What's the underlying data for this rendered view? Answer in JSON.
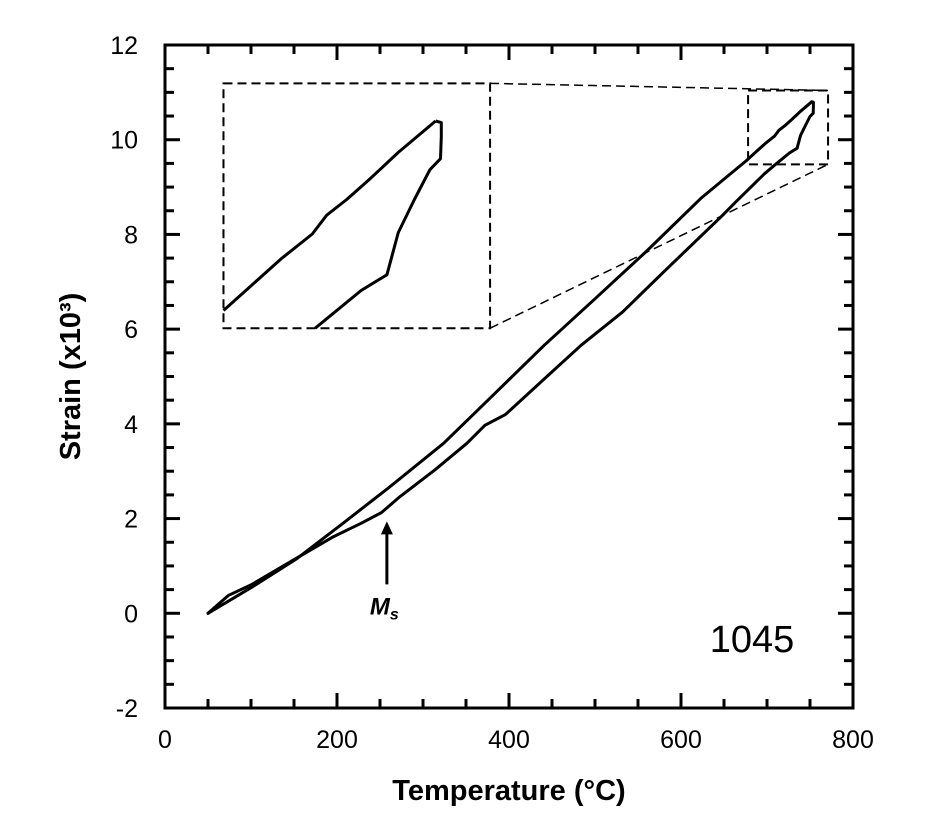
{
  "chart_data": {
    "type": "line",
    "title": "",
    "xlabel": "Temperature (°C)",
    "ylabel": "Strain (x10³)",
    "xlim": [
      0,
      800
    ],
    "ylim": [
      -2,
      12
    ],
    "xticks": [
      0,
      200,
      400,
      600,
      800
    ],
    "yticks": [
      -2,
      0,
      2,
      4,
      6,
      8,
      10,
      12
    ],
    "x_minor_step": 50,
    "y_minor_step": 0.5,
    "grid": false,
    "line_color": "#000000",
    "series": [
      {
        "x": [
          50,
          100,
          153,
          207,
          260,
          324,
          380,
          441,
          500,
          559,
          623,
          676,
          687,
          698,
          709,
          714,
          721,
          729,
          739,
          752
        ],
        "y": [
          0.0,
          0.54,
          1.15,
          1.9,
          2.65,
          3.59,
          4.58,
          5.66,
          6.64,
          7.63,
          8.76,
          9.56,
          9.74,
          9.92,
          10.08,
          10.2,
          10.3,
          10.43,
          10.6,
          10.8
        ]
      },
      {
        "x": [
          752,
          754,
          754,
          753.7,
          750,
          744.6,
          739,
          735,
          726,
          710,
          697,
          665,
          647,
          628,
          580,
          532,
          484,
          441,
          396,
          372,
          351,
          314,
          273,
          252,
          228,
          196,
          149,
          100,
          74,
          50
        ],
        "y": [
          10.8,
          10.79,
          10.7,
          10.56,
          10.49,
          10.3,
          10.09,
          9.82,
          9.72,
          9.48,
          9.28,
          8.71,
          8.38,
          8.05,
          7.21,
          6.36,
          5.66,
          4.95,
          4.2,
          3.97,
          3.59,
          3.03,
          2.46,
          2.13,
          1.9,
          1.62,
          1.12,
          0.6,
          0.38,
          0.0
        ]
      }
    ],
    "zoom_region": {
      "x": [
        678,
        771
      ],
      "y": [
        9.48,
        11.04
      ]
    },
    "inset_box": {
      "x": [
        68,
        378
      ],
      "y": [
        6.02,
        11.19
      ]
    },
    "annotations": {
      "ms_label": "M",
      "ms_subscript": "s",
      "ms_arrow": {
        "x": 258,
        "y_tip": 1.94,
        "y_tail": 0.61
      },
      "material_label": "1045"
    }
  }
}
